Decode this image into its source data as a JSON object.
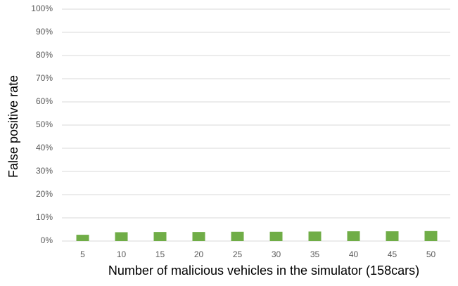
{
  "chart_data": {
    "type": "bar",
    "x_label": "Number of malicious vehicles in the simulator (158cars)",
    "y_label": "False positive rate",
    "categories": [
      "5",
      "10",
      "15",
      "20",
      "25",
      "30",
      "35",
      "40",
      "45",
      "50"
    ],
    "values": [
      2.7,
      3.8,
      3.9,
      3.9,
      4.0,
      4.0,
      4.1,
      4.2,
      4.2,
      4.3
    ],
    "color": "#70ad47",
    "ylim": [
      0,
      100
    ],
    "yticks": [
      {
        "value": 0,
        "label": "0%"
      },
      {
        "value": 10,
        "label": "10%"
      },
      {
        "value": 20,
        "label": "20%"
      },
      {
        "value": 30,
        "label": "30%"
      },
      {
        "value": 40,
        "label": "40%"
      },
      {
        "value": 50,
        "label": "50%"
      },
      {
        "value": 60,
        "label": "60%"
      },
      {
        "value": 70,
        "label": "70%"
      },
      {
        "value": 80,
        "label": "80%"
      },
      {
        "value": 90,
        "label": "90%"
      },
      {
        "value": 100,
        "label": "100%"
      }
    ],
    "grid": true
  }
}
